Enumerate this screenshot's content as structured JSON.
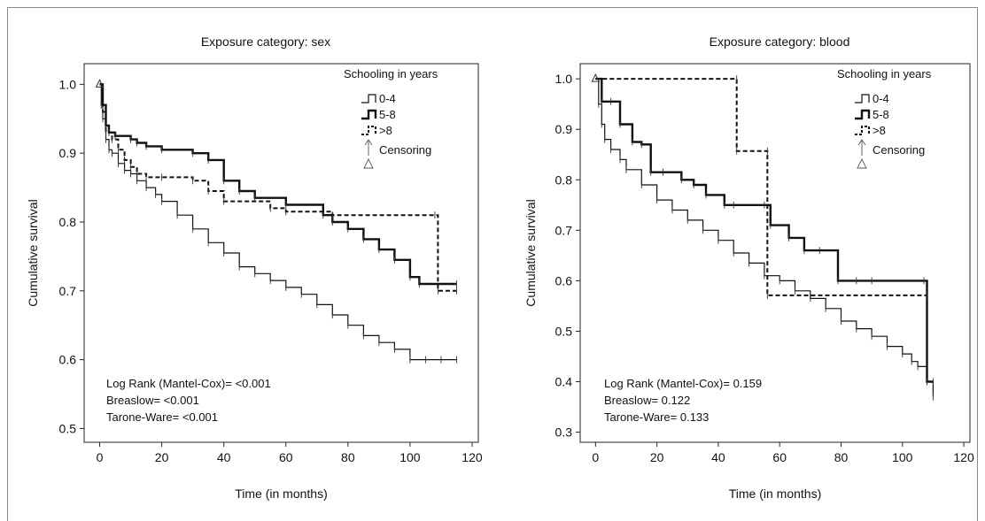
{
  "chart_data": [
    {
      "type": "line",
      "title": "Exposure category: sex",
      "xlabel": "Time (in months)",
      "ylabel": "Cumulative survival",
      "xlim": [
        -5,
        122
      ],
      "ylim": [
        0.48,
        1.03
      ],
      "xticks": [
        0,
        20,
        40,
        60,
        80,
        100,
        120
      ],
      "yticks": [
        0.5,
        0.6,
        0.7,
        0.8,
        0.9,
        1.0
      ],
      "ytick_labels": [
        "0.5",
        "0.6",
        "0.7",
        "0.8",
        "0.9",
        "1.0"
      ],
      "legend_title": "Schooling in years",
      "legend_position": "top-right",
      "censoring_label": "Censoring",
      "stats": [
        "Log Rank (Mantel-Cox)= <0.001",
        "Breaslow= <0.001",
        "Tarone-Ware= <0.001"
      ],
      "series": [
        {
          "name": "0-4",
          "style": "thin",
          "x": [
            0,
            0.5,
            1,
            2,
            3,
            4,
            6,
            8,
            10,
            12,
            15,
            18,
            20,
            25,
            30,
            35,
            40,
            45,
            50,
            55,
            60,
            65,
            70,
            75,
            80,
            85,
            90,
            95,
            100,
            105,
            110,
            115
          ],
          "y": [
            1.0,
            0.97,
            0.95,
            0.92,
            0.905,
            0.9,
            0.885,
            0.875,
            0.87,
            0.86,
            0.85,
            0.84,
            0.83,
            0.81,
            0.79,
            0.77,
            0.755,
            0.735,
            0.725,
            0.715,
            0.705,
            0.695,
            0.68,
            0.665,
            0.65,
            0.635,
            0.625,
            0.615,
            0.6,
            0.6,
            0.6,
            0.6
          ]
        },
        {
          "name": "5-8",
          "style": "thick",
          "x": [
            0,
            1,
            2,
            3,
            5,
            10,
            12,
            15,
            20,
            30,
            35,
            40,
            45,
            50,
            60,
            72,
            75,
            80,
            85,
            90,
            95,
            100,
            103,
            115
          ],
          "y": [
            1.0,
            0.97,
            0.94,
            0.93,
            0.925,
            0.92,
            0.915,
            0.91,
            0.905,
            0.9,
            0.89,
            0.86,
            0.845,
            0.835,
            0.825,
            0.81,
            0.8,
            0.79,
            0.775,
            0.76,
            0.745,
            0.72,
            0.71,
            0.71
          ]
        },
        {
          "name": ">8",
          "style": "dashed",
          "x": [
            0,
            1,
            2,
            4,
            6,
            8,
            10,
            12,
            15,
            20,
            30,
            35,
            40,
            55,
            60,
            75,
            108,
            109,
            115
          ],
          "y": [
            1.0,
            0.96,
            0.93,
            0.92,
            0.905,
            0.89,
            0.88,
            0.87,
            0.865,
            0.865,
            0.86,
            0.845,
            0.83,
            0.82,
            0.815,
            0.81,
            0.81,
            0.7,
            0.7
          ]
        }
      ]
    },
    {
      "type": "line",
      "title": "Exposure category: blood",
      "xlabel": "Time (in months)",
      "ylabel": "Cumulative survival",
      "xlim": [
        -5,
        122
      ],
      "ylim": [
        0.28,
        1.03
      ],
      "xticks": [
        0,
        20,
        40,
        60,
        80,
        100,
        120
      ],
      "yticks": [
        0.3,
        0.4,
        0.5,
        0.6,
        0.7,
        0.8,
        0.9,
        1.0
      ],
      "ytick_labels": [
        "0.3",
        "0.4",
        "0.5",
        "0.6",
        "0.7",
        "0.8",
        "0.9",
        "1.0"
      ],
      "legend_title": "Schooling in years",
      "legend_position": "top-right",
      "censoring_label": "Censoring",
      "stats": [
        "Log Rank (Mantel-Cox)= 0.159",
        "Breaslow= 0.122",
        "Tarone-Ware= 0.133"
      ],
      "series": [
        {
          "name": "0-4",
          "style": "thin",
          "x": [
            0,
            1,
            2,
            3,
            5,
            8,
            10,
            15,
            20,
            25,
            30,
            35,
            40,
            45,
            50,
            55,
            60,
            65,
            70,
            75,
            80,
            85,
            90,
            95,
            100,
            103,
            105,
            108,
            110
          ],
          "y": [
            1.0,
            0.95,
            0.91,
            0.88,
            0.86,
            0.84,
            0.82,
            0.79,
            0.76,
            0.74,
            0.72,
            0.7,
            0.68,
            0.655,
            0.635,
            0.61,
            0.6,
            0.58,
            0.565,
            0.545,
            0.52,
            0.505,
            0.49,
            0.47,
            0.455,
            0.44,
            0.43,
            0.4,
            0.37
          ]
        },
        {
          "name": "5-8",
          "style": "thick",
          "x": [
            0,
            2,
            5,
            8,
            12,
            15,
            18,
            22,
            28,
            32,
            36,
            42,
            45,
            55,
            57,
            63,
            68,
            73,
            79,
            85,
            90,
            107,
            108,
            110
          ],
          "y": [
            1.0,
            0.955,
            0.955,
            0.91,
            0.875,
            0.87,
            0.815,
            0.815,
            0.8,
            0.79,
            0.77,
            0.75,
            0.75,
            0.75,
            0.71,
            0.685,
            0.66,
            0.66,
            0.6,
            0.6,
            0.6,
            0.6,
            0.4,
            0.4
          ]
        },
        {
          "name": ">8",
          "style": "dashed",
          "x": [
            0,
            46,
            46,
            56,
            56,
            108
          ],
          "y": [
            1.0,
            1.0,
            0.857,
            0.857,
            0.571,
            0.571
          ]
        }
      ]
    }
  ]
}
